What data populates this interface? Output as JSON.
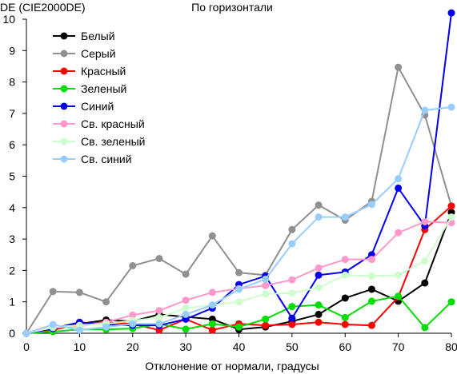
{
  "chart_data": {
    "type": "line",
    "title": "По горизонтали",
    "ylabel": "DE (CIE2000DE)",
    "xlabel": "Отклонение от нормали, градусы",
    "xlim": [
      0,
      80
    ],
    "ylim": [
      0,
      10
    ],
    "x_ticks": [
      "0",
      "10",
      "20",
      "30",
      "40",
      "50",
      "60",
      "70",
      "80"
    ],
    "y_ticks": [
      "0",
      "1",
      "2",
      "3",
      "4",
      "5",
      "6",
      "7",
      "8",
      "9",
      "10"
    ],
    "grid": false,
    "legend_position": "top-left",
    "x": [
      0,
      5,
      10,
      15,
      20,
      25,
      30,
      35,
      40,
      45,
      50,
      55,
      60,
      65,
      70,
      75,
      80
    ],
    "series": [
      {
        "name": "Белый",
        "color": "#000000",
        "values": [
          0,
          0.15,
          0.3,
          0.42,
          0.38,
          0.6,
          0.52,
          0.45,
          0.12,
          0.2,
          0.38,
          0.6,
          1.12,
          1.4,
          1.02,
          1.6,
          3.85
        ]
      },
      {
        "name": "Серый",
        "color": "#909090",
        "values": [
          0,
          1.33,
          1.3,
          1.0,
          2.15,
          2.38,
          1.88,
          3.1,
          1.93,
          1.85,
          3.3,
          4.08,
          3.6,
          4.2,
          8.47,
          6.95,
          4.05
        ]
      },
      {
        "name": "Красный",
        "color": "#ff0000",
        "values": [
          0,
          0.1,
          0.3,
          0.35,
          0.3,
          0.1,
          0.45,
          0.1,
          0.3,
          0.25,
          0.28,
          0.35,
          0.28,
          0.25,
          1.15,
          3.3,
          4.05
        ]
      },
      {
        "name": "Зеленый",
        "color": "#00dd00",
        "values": [
          0,
          0.05,
          0.12,
          0.12,
          0.15,
          0.3,
          0.13,
          0.3,
          0.2,
          0.45,
          0.85,
          0.9,
          0.5,
          1.02,
          1.18,
          0.18,
          1.0
        ]
      },
      {
        "name": "Синий",
        "color": "#0000ee",
        "values": [
          0,
          0.15,
          0.35,
          0.28,
          0.25,
          0.25,
          0.45,
          0.8,
          1.55,
          1.82,
          0.48,
          1.85,
          1.95,
          2.5,
          4.62,
          3.42,
          10.2
        ]
      },
      {
        "name": "Св. красный",
        "color": "#ff99cc",
        "values": [
          0,
          0.18,
          0.22,
          0.35,
          0.58,
          0.72,
          1.05,
          1.3,
          1.42,
          1.52,
          1.7,
          2.08,
          2.35,
          2.35,
          3.2,
          3.55,
          3.52
        ]
      },
      {
        "name": "Св. зеленый",
        "color": "#ccffcc",
        "values": [
          0,
          0.2,
          0.25,
          0.3,
          0.4,
          0.5,
          0.8,
          0.9,
          1.0,
          1.25,
          1.28,
          1.45,
          1.85,
          1.82,
          1.85,
          2.3,
          3.7
        ]
      },
      {
        "name": "Св. синий",
        "color": "#99ccff",
        "values": [
          0,
          0.28,
          0.1,
          0.2,
          0.3,
          0.3,
          0.6,
          0.9,
          1.4,
          1.72,
          2.85,
          3.7,
          3.7,
          4.1,
          4.92,
          7.1,
          7.2
        ]
      }
    ]
  }
}
